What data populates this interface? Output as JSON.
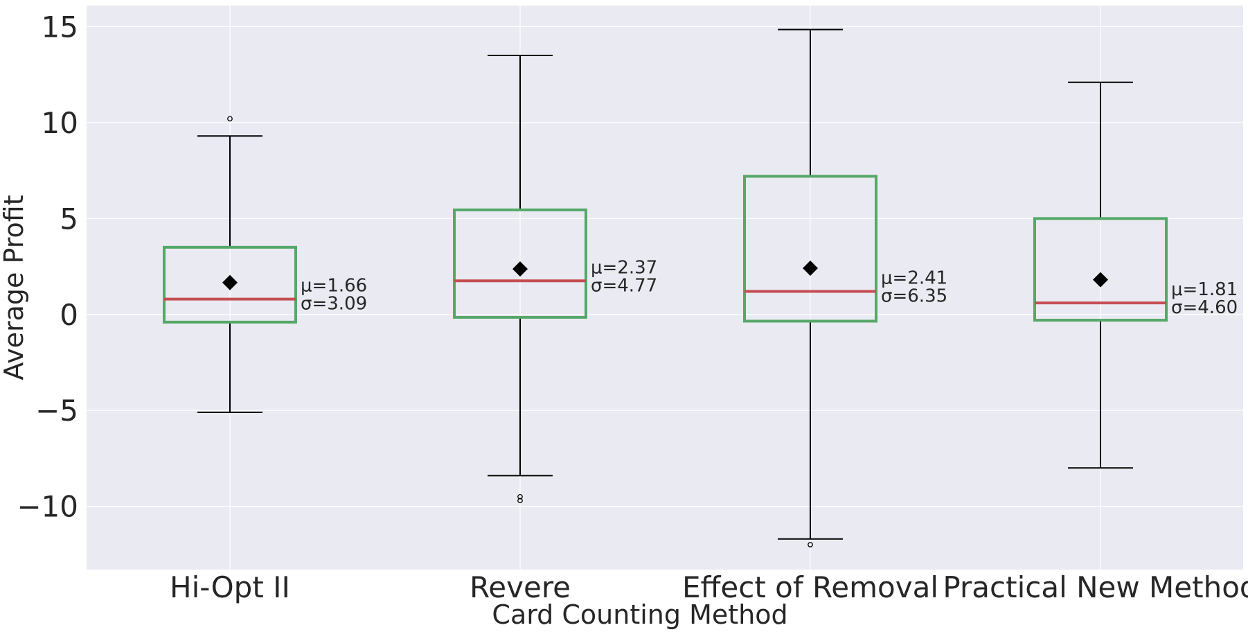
{
  "chart_data": {
    "type": "box",
    "title": "",
    "xlabel": "Card Counting Method",
    "ylabel": "Average Profit",
    "ylim": [
      -13.3,
      16.1
    ],
    "yticks": [
      15,
      10,
      5,
      0,
      -5,
      -10
    ],
    "ytick_labels": [
      "15",
      "10",
      "5",
      "0",
      "−5",
      "−10"
    ],
    "grid": true,
    "categories": [
      "Hi-Opt II",
      "Revere",
      "Effect of Removal",
      "Practical New Method"
    ],
    "boxes": [
      {
        "name": "Hi-Opt II",
        "q1": -0.4,
        "median": 0.8,
        "q3": 3.5,
        "whisker_low": -5.1,
        "whisker_high": 9.3,
        "mean": 1.66,
        "outliers": [
          10.2
        ],
        "annotation": [
          "μ=1.66",
          "σ=3.09"
        ]
      },
      {
        "name": "Revere",
        "q1": -0.15,
        "median": 1.75,
        "q3": 5.45,
        "whisker_low": -8.4,
        "whisker_high": 13.5,
        "mean": 2.37,
        "outliers": [
          -9.5,
          -9.7
        ],
        "annotation": [
          "μ=2.37",
          "σ=4.77"
        ]
      },
      {
        "name": "Effect of Removal",
        "q1": -0.35,
        "median": 1.2,
        "q3": 7.2,
        "whisker_low": -11.7,
        "whisker_high": 14.85,
        "mean": 2.41,
        "outliers": [
          -12.0
        ],
        "annotation": [
          "μ=2.41",
          "σ=6.35"
        ]
      },
      {
        "name": "Practical New Method",
        "q1": -0.3,
        "median": 0.6,
        "q3": 5.0,
        "whisker_low": -8.0,
        "whisker_high": 12.1,
        "mean": 1.81,
        "outliers": [],
        "annotation": [
          "μ=1.81",
          "σ=4.60"
        ]
      }
    ],
    "colors": {
      "background": "#EAEAF2",
      "grid": "#FFFFFF",
      "box": "#55A868",
      "median": "#C44E52",
      "whisker": "#000000",
      "mean_marker": "#000000"
    }
  }
}
